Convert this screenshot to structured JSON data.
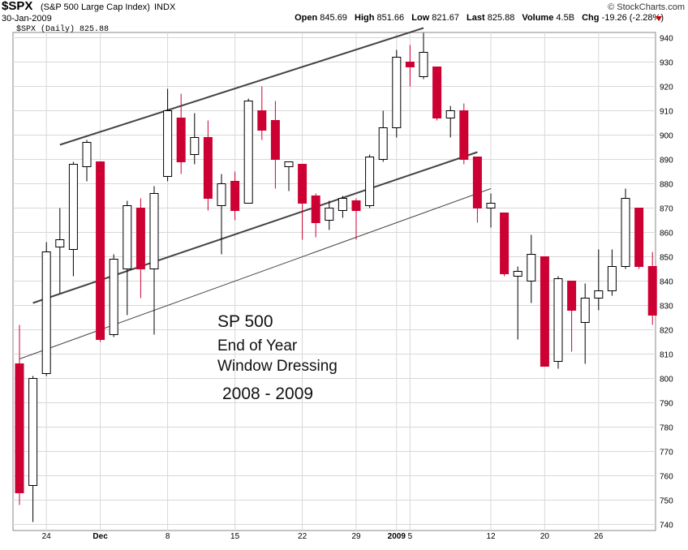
{
  "header": {
    "symbol": "$SPX",
    "name": "(S&P 500 Large Cap Index)",
    "exchange": "INDX",
    "date": "30-Jan-2009",
    "brand": "© StockCharts.com",
    "open_label": "Open",
    "open": "845.69",
    "high_label": "High",
    "high": "851.66",
    "low_label": "Low",
    "low": "821.67",
    "last_label": "Last",
    "last": "825.88",
    "volume_label": "Volume",
    "volume": "4.5B",
    "chg_label": "Chg",
    "chg": "-19.26 (-2.28%)",
    "legend": "$SPX (Daily) 825.88"
  },
  "annotation": {
    "line1": "SP 500",
    "line2": "End of Year",
    "line3": "Window Dressing",
    "line4": "2008 - 2009"
  },
  "colors": {
    "down": "#cc0033",
    "up": "#ffffff",
    "outline": "#000000",
    "grid": "#d8d8d8"
  },
  "chart_data": {
    "type": "candlestick",
    "title": "$SPX (Daily) 825.88",
    "ylim": [
      740,
      945
    ],
    "y_ticks": [
      740,
      750,
      760,
      770,
      780,
      790,
      800,
      810,
      820,
      830,
      840,
      850,
      860,
      870,
      880,
      890,
      900,
      910,
      920,
      930,
      940
    ],
    "x_ticks": [
      "24",
      "Dec",
      "8",
      "15",
      "22",
      "29",
      "2009",
      "5",
      "12",
      "20",
      "26"
    ],
    "grid": true,
    "candles": [
      {
        "o": 806,
        "h": 822,
        "l": 748,
        "c": 753
      },
      {
        "o": 756,
        "h": 801,
        "l": 741,
        "c": 800
      },
      {
        "o": 802,
        "h": 856,
        "l": 801,
        "c": 852
      },
      {
        "o": 854,
        "h": 870,
        "l": 835,
        "c": 857
      },
      {
        "o": 853,
        "h": 889,
        "l": 842,
        "c": 888
      },
      {
        "o": 887,
        "h": 898,
        "l": 881,
        "c": 897
      },
      {
        "o": 889,
        "h": 889,
        "l": 815,
        "c": 816
      },
      {
        "o": 818,
        "h": 851,
        "l": 817,
        "c": 849
      },
      {
        "o": 845,
        "h": 873,
        "l": 826,
        "c": 871
      },
      {
        "o": 870,
        "h": 874,
        "l": 833,
        "c": 845
      },
      {
        "o": 845,
        "h": 879,
        "l": 818,
        "c": 876
      },
      {
        "o": 883,
        "h": 919,
        "l": 881,
        "c": 910
      },
      {
        "o": 907,
        "h": 917,
        "l": 884,
        "c": 889
      },
      {
        "o": 892,
        "h": 909,
        "l": 888,
        "c": 899
      },
      {
        "o": 899,
        "h": 906,
        "l": 869,
        "c": 874
      },
      {
        "o": 871,
        "h": 884,
        "l": 851,
        "c": 880
      },
      {
        "o": 881,
        "h": 885,
        "l": 865,
        "c": 869
      },
      {
        "o": 872,
        "h": 915,
        "l": 872,
        "c": 914
      },
      {
        "o": 910,
        "h": 920,
        "l": 898,
        "c": 902
      },
      {
        "o": 906,
        "h": 914,
        "l": 878,
        "c": 890
      },
      {
        "o": 887,
        "h": 889,
        "l": 877,
        "c": 889
      },
      {
        "o": 888,
        "h": 888,
        "l": 857,
        "c": 872
      },
      {
        "o": 875,
        "h": 876,
        "l": 858,
        "c": 864
      },
      {
        "o": 865,
        "h": 873,
        "l": 861,
        "c": 870
      },
      {
        "o": 869,
        "h": 875,
        "l": 866,
        "c": 874
      },
      {
        "o": 873,
        "h": 874,
        "l": 857,
        "c": 869
      },
      {
        "o": 871,
        "h": 892,
        "l": 870,
        "c": 891
      },
      {
        "o": 890,
        "h": 910,
        "l": 889,
        "c": 903
      },
      {
        "o": 903,
        "h": 935,
        "l": 899,
        "c": 932
      },
      {
        "o": 930,
        "h": 937,
        "l": 920,
        "c": 928
      },
      {
        "o": 924,
        "h": 942,
        "l": 923,
        "c": 934
      },
      {
        "o": 928,
        "h": 928,
        "l": 906,
        "c": 907
      },
      {
        "o": 907,
        "h": 912,
        "l": 899,
        "c": 910
      },
      {
        "o": 910,
        "h": 913,
        "l": 888,
        "c": 890
      },
      {
        "o": 891,
        "h": 891,
        "l": 864,
        "c": 870
      },
      {
        "o": 870,
        "h": 876,
        "l": 862,
        "c": 872
      },
      {
        "o": 868,
        "h": 868,
        "l": 842,
        "c": 843
      },
      {
        "o": 842,
        "h": 846,
        "l": 816,
        "c": 844
      },
      {
        "o": 840,
        "h": 859,
        "l": 831,
        "c": 851
      },
      {
        "o": 850,
        "h": 850,
        "l": 805,
        "c": 805
      },
      {
        "o": 807,
        "h": 842,
        "l": 804,
        "c": 841
      },
      {
        "o": 840,
        "h": 840,
        "l": 811,
        "c": 828
      },
      {
        "o": 823,
        "h": 839,
        "l": 806,
        "c": 833
      },
      {
        "o": 833,
        "h": 853,
        "l": 828,
        "c": 836
      },
      {
        "o": 836,
        "h": 853,
        "l": 834,
        "c": 846
      },
      {
        "o": 846,
        "h": 878,
        "l": 845,
        "c": 874
      },
      {
        "o": 870,
        "h": 870,
        "l": 845,
        "c": 846
      },
      {
        "o": 846,
        "h": 852,
        "l": 822,
        "c": 826
      }
    ],
    "trendlines": [
      {
        "from": [
          3,
          896
        ],
        "to": [
          30,
          944
        ]
      },
      {
        "from": [
          1,
          831
        ],
        "to": [
          34,
          893
        ]
      },
      {
        "from": [
          0,
          808
        ],
        "to": [
          35,
          878
        ]
      }
    ]
  }
}
